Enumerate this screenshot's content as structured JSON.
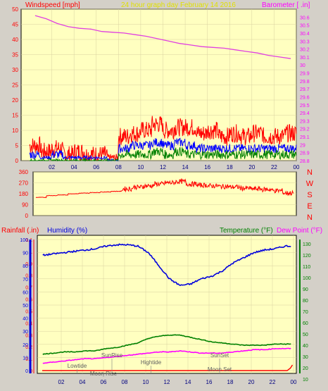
{
  "header": {
    "left_title": "Windspeed [mph]",
    "center_title": "24 hour graph day   February 14 2016",
    "right_title": "Barometer [ .in]"
  },
  "lower_header": {
    "rainfall": "Rainfall (.in)",
    "humidity": "Humidity (%)",
    "temperature": "Temperature (°F)",
    "dewpoint": "Dew Point (°F)"
  },
  "colors": {
    "plot_bg": "#ffffc0",
    "window_bg": "#d4d0c8",
    "gust": "#ff0000",
    "wind_avg": "#0000ff",
    "wind_min": "#008000",
    "barometer": "#e040e0",
    "direction": "#ff0000",
    "humidity": "#0000dd",
    "temperature": "#008000",
    "dewpoint": "#ff00ff",
    "rainfall": "#ff0000",
    "title_left": "#ff0000",
    "title_center": "#e0e000",
    "title_right": "#ff00ff"
  },
  "chart_data": [
    {
      "type": "line",
      "panel": "wind-barometer",
      "xlabel": "",
      "ylabel": "Windspeed [mph]",
      "y2label": "Barometer [ .in]",
      "x_ticks": [
        "02",
        "04",
        "06",
        "08",
        "10",
        "12",
        "14",
        "16",
        "18",
        "20",
        "22",
        "00"
      ],
      "ylim": [
        0,
        50
      ],
      "y_ticks": [
        "0",
        "5",
        "10",
        "15",
        "20",
        "25",
        "30",
        "35",
        "40",
        "45",
        "50"
      ],
      "y2lim": [
        28.8,
        30.7
      ],
      "y2_ticks": [
        "28.8",
        "28.9",
        "29",
        "29.1",
        "29.2",
        "29.3",
        "29.4",
        "29.5",
        "29.6",
        "29.7",
        "29.8",
        "29.9",
        "30",
        "30.1",
        "30.2",
        "30.3",
        "30.4",
        "30.5",
        "30.6"
      ],
      "grid": true,
      "series": [
        {
          "key": "gust",
          "values": [
            5,
            3,
            4,
            2,
            3,
            2,
            2,
            1,
            8,
            9,
            10,
            12,
            10,
            11,
            11,
            9,
            10,
            8,
            9,
            8,
            9,
            8,
            8,
            9
          ]
        },
        {
          "key": "avg",
          "values": [
            2,
            1,
            2,
            1,
            1,
            1,
            1,
            0,
            4,
            5,
            5,
            6,
            5,
            6,
            5,
            4,
            4,
            4,
            4,
            4,
            4,
            4,
            4,
            4
          ]
        },
        {
          "key": "min",
          "values": [
            0,
            0,
            0,
            0,
            0,
            0,
            0,
            0,
            2,
            2,
            2,
            3,
            2,
            3,
            2,
            2,
            2,
            2,
            2,
            2,
            2,
            2,
            2,
            2
          ]
        },
        {
          "key": "barometer",
          "values": [
            30.62,
            30.58,
            30.52,
            30.48,
            30.46,
            30.45,
            30.42,
            30.41,
            30.4,
            30.38,
            30.36,
            30.33,
            30.3,
            30.27,
            30.25,
            30.23,
            30.22,
            30.21,
            30.19,
            30.17,
            30.15,
            30.12,
            30.1,
            30.08
          ]
        }
      ]
    },
    {
      "type": "line",
      "panel": "wind-direction",
      "ylabel": "",
      "ylim": [
        0,
        360
      ],
      "y_ticks": [
        "0",
        "90",
        "180",
        "270",
        "360"
      ],
      "direction_labels": [
        "N",
        "W",
        "S",
        "E",
        "N"
      ],
      "grid": true,
      "series": [
        {
          "key": "direction",
          "values": [
            150,
            165,
            170,
            180,
            185,
            190,
            195,
            200,
            220,
            235,
            245,
            260,
            270,
            280,
            260,
            250,
            245,
            240,
            235,
            225,
            220,
            215,
            205,
            185
          ]
        }
      ]
    },
    {
      "type": "line",
      "panel": "temperature-humidity",
      "x_ticks": [
        "02",
        "04",
        "06",
        "08",
        "10",
        "12",
        "14",
        "16",
        "18",
        "20",
        "22",
        "00"
      ],
      "y_rain_ticks": [
        "0",
        "0.1",
        "0.2",
        "0.3",
        "0.4",
        "0.5",
        "0.6",
        "0.7",
        "0.8",
        "0.9",
        "1",
        "1.1"
      ],
      "y_hum_ticks": [
        "0",
        "10",
        "20",
        "30",
        "40",
        "50",
        "60",
        "70",
        "80",
        "90",
        "100"
      ],
      "y_temp_ticks": [
        "10",
        "20",
        "30",
        "40",
        "50",
        "60",
        "70",
        "80",
        "90",
        "100",
        "110",
        "120",
        "130"
      ],
      "humidity_lim": [
        0,
        100
      ],
      "temp_lim": [
        10,
        130
      ],
      "rain_lim": [
        0,
        1.1
      ],
      "grid": true,
      "annotations": [
        "SunRise",
        "Lowtide",
        "Moon Rise",
        "Hightide",
        "SunSet",
        "Moon Set"
      ],
      "series": [
        {
          "key": "humidity",
          "values": [
            88,
            89,
            90,
            91,
            92,
            93,
            95,
            96,
            96,
            95,
            90,
            80,
            70,
            65,
            66,
            70,
            72,
            76,
            82,
            86,
            90,
            92,
            93,
            95
          ]
        },
        {
          "key": "temperature",
          "values": [
            32,
            33,
            34,
            34,
            35,
            35,
            37,
            38,
            40,
            42,
            46,
            48,
            49,
            49,
            47,
            45,
            43,
            42,
            41,
            40,
            40,
            40,
            41,
            41
          ]
        },
        {
          "key": "dewpoint",
          "values": [
            24,
            25,
            26,
            27,
            28,
            28,
            29,
            30,
            31,
            32,
            33,
            34,
            34,
            35,
            34,
            33,
            33,
            33,
            34,
            35,
            36,
            36,
            37,
            37
          ]
        },
        {
          "key": "rainfall",
          "values": [
            0,
            0,
            0,
            0,
            0,
            0,
            0,
            0,
            0,
            0,
            0,
            0,
            0,
            0,
            0,
            0,
            0,
            0,
            0,
            0,
            0,
            0,
            0,
            0.02
          ]
        }
      ]
    }
  ]
}
